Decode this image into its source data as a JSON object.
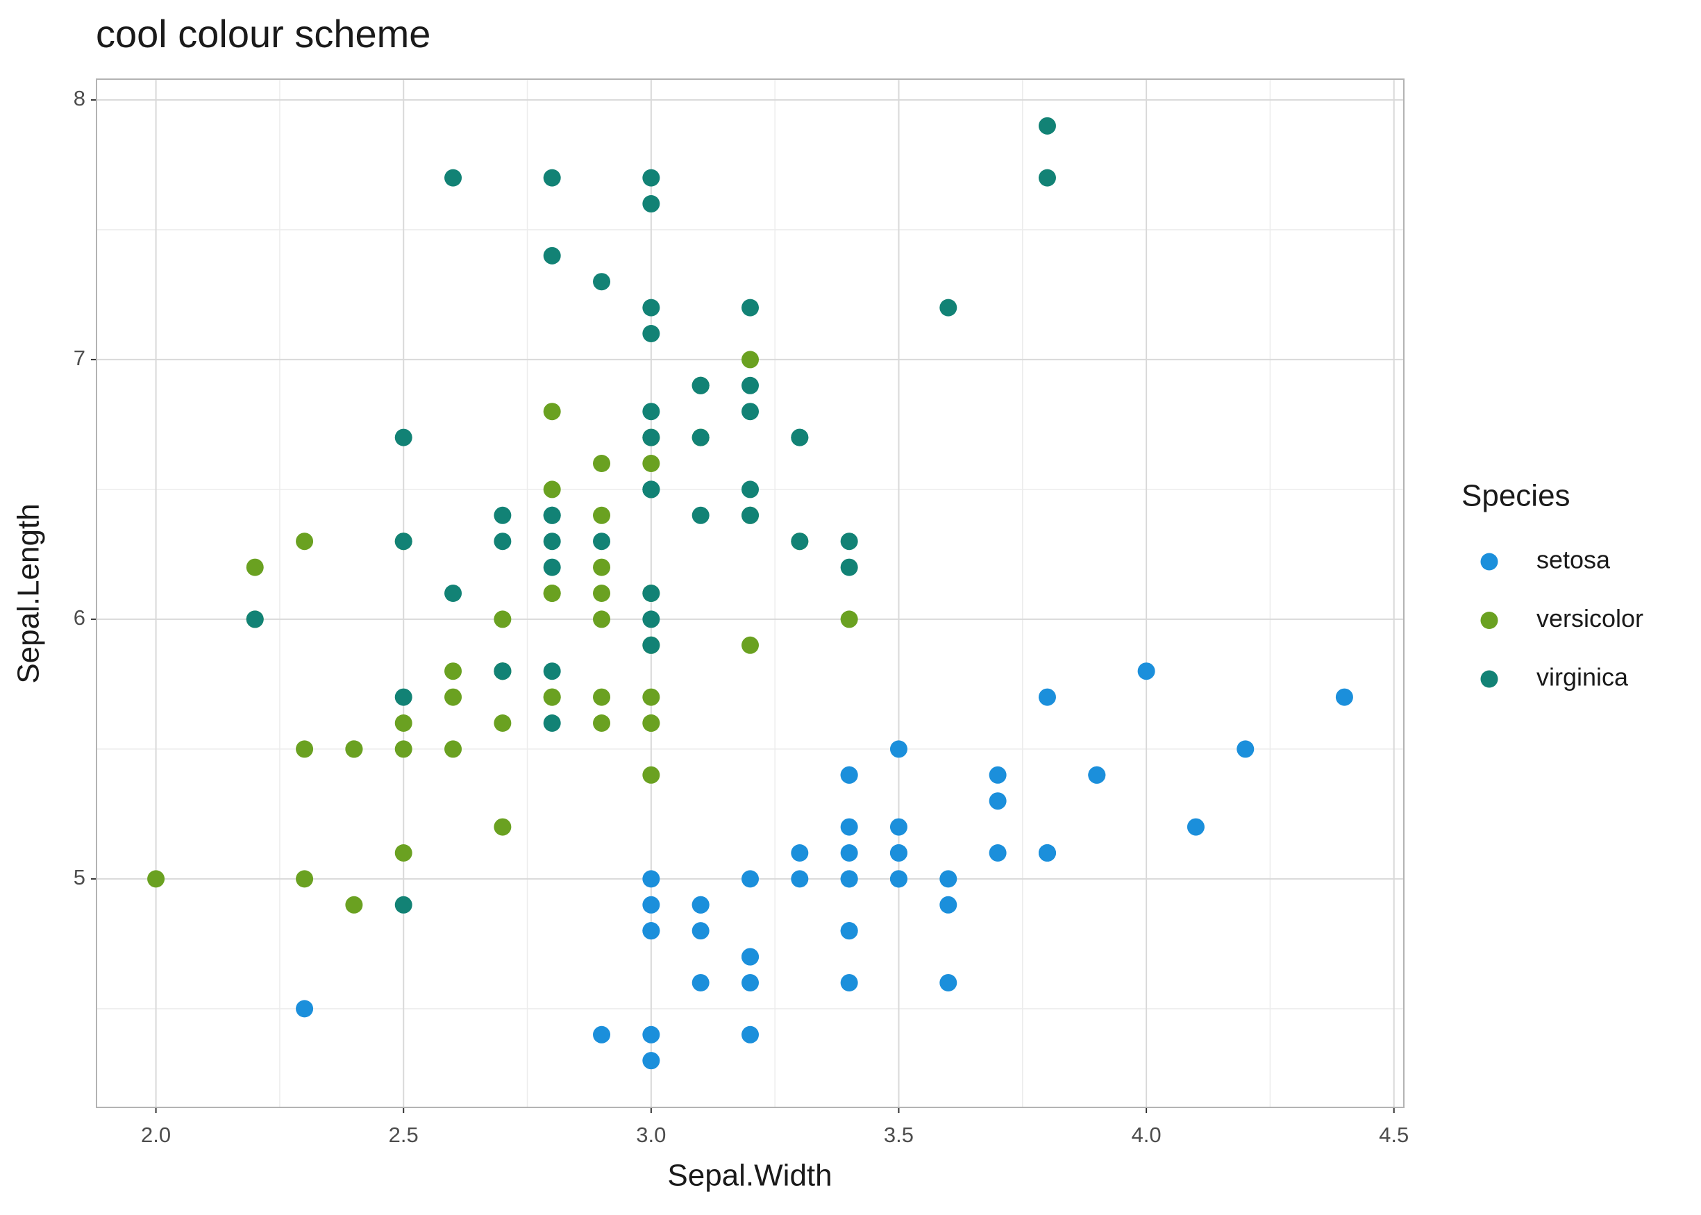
{
  "chart_data": {
    "type": "scatter",
    "title": "cool colour scheme",
    "x_label": "Sepal.Width",
    "y_label": "Sepal.Length",
    "legend_title": "Species",
    "xlim": [
      1.88,
      4.52
    ],
    "ylim": [
      4.12,
      8.08
    ],
    "xticks": [
      {
        "value": 2,
        "label": "2.0"
      },
      {
        "value": 2.5,
        "label": "2.5"
      },
      {
        "value": 3,
        "label": "3.0"
      },
      {
        "value": 3.5,
        "label": "3.5"
      },
      {
        "value": 4,
        "label": "4.0"
      },
      {
        "value": 4.5,
        "label": "4.5"
      }
    ],
    "yticks": [
      5,
      6,
      7,
      8
    ],
    "x_minor_ticks": [
      2.25,
      2.75,
      3.25,
      3.75,
      4.25
    ],
    "y_minor_ticks": [
      4.5,
      5.5,
      6.5,
      7.5
    ],
    "grid": true,
    "legend_position": "right",
    "series": [
      {
        "name": "setosa",
        "color": "#1b8fdb",
        "x": [
          3.5,
          3.0,
          3.2,
          3.1,
          3.6,
          3.9,
          3.4,
          3.4,
          2.9,
          3.1,
          3.7,
          3.4,
          3.0,
          3.0,
          4.0,
          4.4,
          3.9,
          3.5,
          3.8,
          3.8,
          3.4,
          3.7,
          3.6,
          3.3,
          3.4,
          3.0,
          3.4,
          3.5,
          3.4,
          3.2,
          3.1,
          3.4,
          4.1,
          4.2,
          3.1,
          3.2,
          3.5,
          3.6,
          3.0,
          3.4,
          3.5,
          2.3,
          3.2,
          3.5,
          3.8,
          3.0,
          3.8,
          3.2,
          3.7,
          3.3
        ],
        "values": [
          5.1,
          4.9,
          4.7,
          4.6,
          5.0,
          5.4,
          4.6,
          5.0,
          4.4,
          4.9,
          5.4,
          4.8,
          4.8,
          4.3,
          5.8,
          5.7,
          5.4,
          5.1,
          5.7,
          5.1,
          5.4,
          5.1,
          4.6,
          5.1,
          4.8,
          5.0,
          5.0,
          5.2,
          5.2,
          4.7,
          4.8,
          5.4,
          5.2,
          5.5,
          4.9,
          5.0,
          5.5,
          4.9,
          4.4,
          5.1,
          5.0,
          4.5,
          4.4,
          5.0,
          5.1,
          4.8,
          5.1,
          4.6,
          5.3,
          5.0
        ]
      },
      {
        "name": "versicolor",
        "color": "#6aa121",
        "x": [
          3.2,
          3.2,
          3.1,
          2.3,
          2.8,
          2.8,
          3.3,
          2.4,
          2.9,
          2.7,
          2.0,
          3.0,
          2.2,
          2.9,
          2.9,
          3.1,
          3.0,
          2.7,
          2.2,
          2.5,
          3.2,
          2.8,
          2.5,
          2.8,
          2.9,
          3.0,
          2.8,
          3.0,
          2.9,
          2.6,
          2.4,
          2.4,
          2.7,
          2.7,
          3.0,
          3.4,
          3.1,
          2.3,
          3.0,
          2.5,
          2.6,
          3.0,
          2.6,
          2.3,
          2.7,
          3.0,
          2.9,
          2.9,
          2.5,
          2.8
        ],
        "values": [
          7.0,
          6.4,
          6.9,
          5.5,
          6.5,
          5.7,
          6.3,
          4.9,
          6.6,
          5.2,
          5.0,
          5.9,
          6.0,
          6.1,
          5.6,
          6.7,
          5.6,
          5.8,
          6.2,
          5.6,
          5.9,
          6.1,
          6.3,
          6.1,
          6.4,
          6.6,
          6.8,
          6.7,
          6.0,
          5.7,
          5.5,
          5.5,
          5.8,
          6.0,
          5.4,
          6.0,
          6.7,
          6.3,
          5.6,
          5.5,
          5.5,
          6.1,
          5.8,
          5.0,
          5.6,
          5.7,
          5.7,
          6.2,
          5.1,
          5.7
        ]
      },
      {
        "name": "virginica",
        "color": "#128275",
        "x": [
          3.3,
          2.7,
          3.0,
          2.9,
          3.0,
          3.0,
          2.5,
          2.9,
          2.5,
          3.6,
          3.2,
          2.7,
          3.0,
          2.5,
          2.8,
          3.2,
          3.0,
          3.8,
          2.6,
          2.2,
          3.2,
          2.8,
          2.8,
          2.7,
          3.3,
          3.2,
          2.8,
          3.0,
          2.8,
          3.0,
          2.8,
          3.8,
          2.8,
          2.8,
          2.6,
          3.0,
          3.4,
          3.1,
          3.0,
          3.1,
          3.1,
          3.1,
          2.7,
          3.2,
          3.3,
          3.0,
          2.5,
          3.0,
          3.4,
          3.0
        ],
        "values": [
          6.3,
          5.8,
          7.1,
          6.3,
          6.5,
          7.6,
          4.9,
          7.3,
          6.7,
          7.2,
          6.5,
          6.4,
          6.8,
          5.7,
          5.8,
          6.4,
          6.5,
          7.7,
          7.7,
          6.0,
          6.9,
          5.6,
          7.7,
          6.3,
          6.7,
          7.2,
          6.2,
          6.1,
          6.4,
          7.2,
          7.4,
          7.9,
          6.4,
          6.3,
          6.1,
          7.7,
          6.3,
          6.4,
          6.0,
          6.9,
          6.7,
          6.9,
          5.8,
          6.8,
          6.7,
          6.7,
          6.3,
          6.5,
          6.2,
          5.9
        ]
      }
    ]
  }
}
